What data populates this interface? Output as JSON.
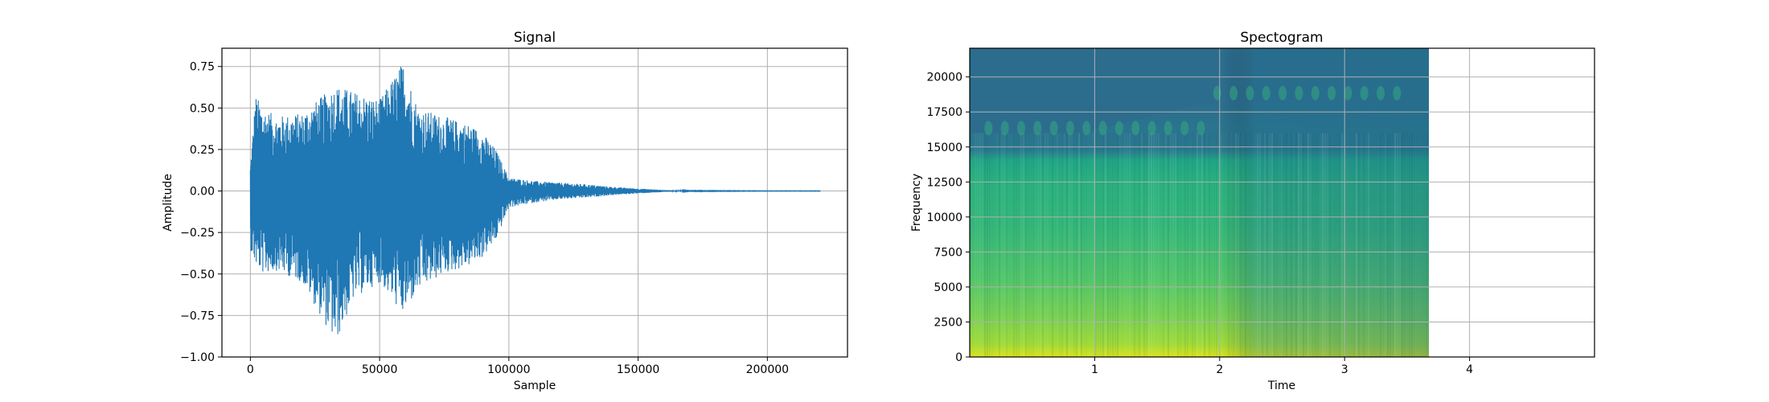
{
  "chart_data": [
    {
      "type": "line",
      "title": "Signal",
      "xlabel": "Sample",
      "ylabel": "Amplitude",
      "xlim": [
        -11000,
        231000
      ],
      "ylim": [
        -1.0,
        0.86
      ],
      "xticks": [
        0,
        50000,
        100000,
        150000,
        200000
      ],
      "xtick_labels": [
        "0",
        "50000",
        "100000",
        "150000",
        "200000"
      ],
      "yticks": [
        -1.0,
        -0.75,
        -0.5,
        -0.25,
        0.0,
        0.25,
        0.5,
        0.75
      ],
      "ytick_labels": [
        "−1.00",
        "−0.75",
        "−0.50",
        "−0.25",
        "0.00",
        "0.25",
        "0.50",
        "0.75"
      ],
      "grid": true,
      "color": "#1f77b4",
      "series": [
        {
          "x": [
            0,
            2000,
            5000,
            10000,
            20000,
            33000,
            40000,
            50000,
            59000,
            65000,
            75000,
            85000,
            90000,
            95000,
            100000,
            110000,
            120000,
            130000,
            140000,
            150000,
            160000,
            170000,
            200000,
            220500
          ],
          "upper": [
            0.15,
            0.58,
            0.5,
            0.45,
            0.47,
            0.64,
            0.6,
            0.55,
            0.78,
            0.5,
            0.45,
            0.4,
            0.35,
            0.25,
            0.08,
            0.06,
            0.05,
            0.04,
            0.025,
            0.015,
            0.006,
            0.002,
            0.001,
            0.001
          ],
          "lower": [
            -0.35,
            -0.45,
            -0.5,
            -0.48,
            -0.55,
            -0.92,
            -0.65,
            -0.55,
            -0.75,
            -0.6,
            -0.5,
            -0.45,
            -0.4,
            -0.3,
            -0.1,
            -0.07,
            -0.05,
            -0.04,
            -0.025,
            -0.015,
            -0.006,
            -0.002,
            -0.001,
            -0.001
          ]
        }
      ]
    },
    {
      "type": "heatmap",
      "title": "Spectogram",
      "xlabel": "Time",
      "ylabel": "Frequency",
      "xlim": [
        0,
        5.0
      ],
      "ylim": [
        0,
        22050
      ],
      "xticks": [
        1,
        2,
        3,
        4
      ],
      "xtick_labels": [
        "1",
        "2",
        "3",
        "4"
      ],
      "yticks": [
        0,
        2500,
        5000,
        7500,
        10000,
        12500,
        15000,
        17500,
        20000
      ],
      "ytick_labels": [
        "0",
        "2500",
        "5000",
        "7500",
        "10000",
        "12500",
        "15000",
        "17500",
        "20000"
      ],
      "grid": true,
      "colormap": "viridis",
      "data_extent_time": [
        0,
        3.68
      ],
      "cutoff_frequency": 18500,
      "cutoff_frequency_early": 16000
    }
  ]
}
